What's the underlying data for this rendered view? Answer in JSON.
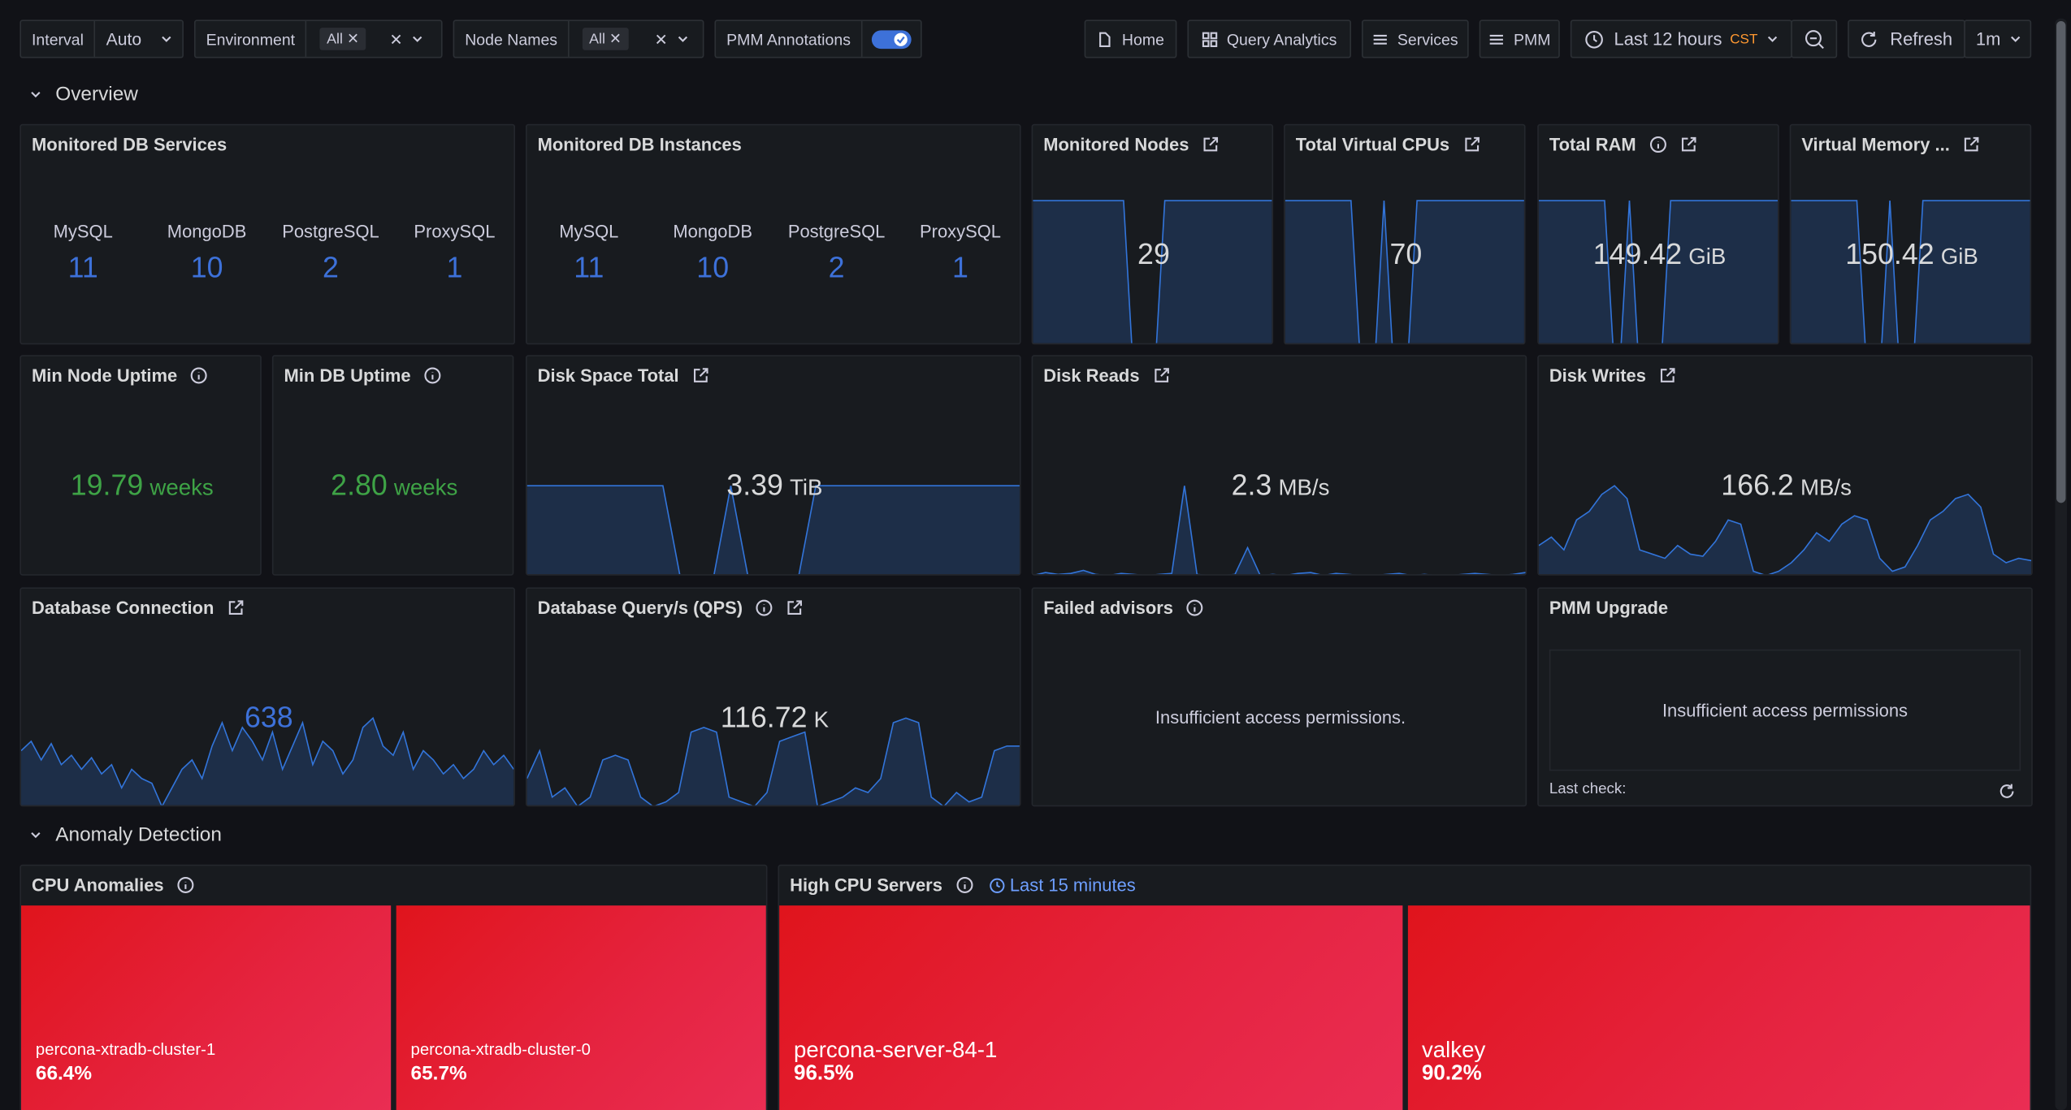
{
  "toolbar": {
    "variables": [
      {
        "label": "Interval",
        "value": "Auto"
      },
      {
        "label": "Environment",
        "value": "All"
      },
      {
        "label": "Node Names",
        "value": "All"
      }
    ],
    "annotations_toggle": {
      "label": "PMM Annotations"
    },
    "links": [
      "Home",
      "Query Analytics",
      "Services",
      "PMM"
    ],
    "time_range": "Last 12 hours",
    "timezone": "CST",
    "refresh": "Refresh",
    "refresh_interval": "1m"
  },
  "rows": [
    {
      "title": "Overview",
      "panels": [
        {
          "kind": "counts",
          "title": "Monitored DB Services",
          "color": "#3d71d9",
          "items": [
            {
              "name": "MySQL",
              "value": 11
            },
            {
              "name": "MongoDB",
              "value": 10
            },
            {
              "name": "PostgreSQL",
              "value": 2
            },
            {
              "name": "ProxySQL",
              "value": 1
            }
          ]
        },
        {
          "kind": "counts",
          "title": "Monitored DB Instances",
          "color": "#3d71d9",
          "items": [
            {
              "name": "MySQL",
              "value": 11
            },
            {
              "name": "MongoDB",
              "value": 10
            },
            {
              "name": "PostgreSQL",
              "value": 2
            },
            {
              "name": "ProxySQL",
              "value": 1
            }
          ]
        },
        {
          "kind": "stat",
          "title": "Monitored Nodes",
          "icons": [
            "link"
          ],
          "value": 29,
          "color": "#d8d9da",
          "sparkline": [
            29,
            29,
            29,
            29,
            29,
            29,
            29,
            29,
            29,
            29,
            29,
            29,
            0,
            0,
            0,
            0,
            29,
            29,
            29,
            29,
            29,
            29,
            29,
            29,
            29,
            29,
            29,
            29,
            29,
            29
          ]
        },
        {
          "kind": "stat",
          "title": "Total Virtual CPUs",
          "icons": [
            "link"
          ],
          "value": 70,
          "color": "#d8d9da",
          "sparkline": [
            70,
            70,
            70,
            70,
            70,
            70,
            70,
            70,
            70,
            0,
            0,
            0,
            70,
            0,
            0,
            0,
            70,
            70,
            70,
            70,
            70,
            70,
            70,
            70,
            70,
            70,
            70,
            70,
            70,
            70
          ]
        },
        {
          "kind": "stat",
          "title": "Total RAM",
          "icons": [
            "info",
            "link"
          ],
          "value": 149.42,
          "unit": "GiB",
          "color": "#d8d9da",
          "sparkline": [
            149.42,
            149.42,
            149.42,
            149.42,
            149.42,
            149.42,
            149.42,
            149.42,
            149.42,
            0,
            0,
            149.42,
            0,
            0,
            0,
            0,
            149.42,
            149.42,
            149.42,
            149.42,
            149.42,
            149.42,
            149.42,
            149.42,
            149.42,
            149.42,
            149.42,
            149.42,
            149.42,
            149.42
          ]
        },
        {
          "kind": "stat",
          "title": "Virtual Memory ...",
          "icons": [
            "link"
          ],
          "value": 150.42,
          "unit": "GiB",
          "color": "#d8d9da",
          "sparkline": [
            150.42,
            150.42,
            150.42,
            150.42,
            150.42,
            150.42,
            150.42,
            150.42,
            150.42,
            0,
            0,
            0,
            150.42,
            0,
            0,
            0,
            150.42,
            150.42,
            150.42,
            150.42,
            150.42,
            150.42,
            150.42,
            150.42,
            150.42,
            150.42,
            150.42,
            150.42,
            150.42,
            150.42
          ]
        },
        {
          "kind": "stat",
          "title": "Min Node Uptime",
          "icons": [
            "info"
          ],
          "value": 19.79,
          "unit": "weeks",
          "color": "#3ea346"
        },
        {
          "kind": "stat",
          "title": "Min DB Uptime",
          "icons": [
            "info"
          ],
          "value": 2.8,
          "value_label": "2.80",
          "unit": "weeks",
          "color": "#3ea346"
        },
        {
          "kind": "stat",
          "title": "Disk Space Total",
          "icons": [
            "link"
          ],
          "value": 3.39,
          "unit": "TiB",
          "color": "#d8d9da",
          "sparkline": [
            3.39,
            3.39,
            3.39,
            3.39,
            3.39,
            3.39,
            3.39,
            3.39,
            3.39,
            0,
            0,
            0,
            3.39,
            0,
            0,
            0,
            0,
            3.39,
            3.39,
            3.39,
            3.39,
            3.39,
            3.39,
            3.39,
            3.39,
            3.39,
            3.39,
            3.39,
            3.39,
            3.39
          ]
        },
        {
          "kind": "stat",
          "title": "Disk Reads",
          "icons": [
            "link"
          ],
          "value": 2.3,
          "unit": "MB/s",
          "color": "#d8d9da",
          "sparkline": [
            0.3,
            0.6,
            0.4,
            0.5,
            0.8,
            0.4,
            0.3,
            0.5,
            0.4,
            0.3,
            0.4,
            0.5,
            9.0,
            0.4,
            0.3,
            0.3,
            0.4,
            3.0,
            0.3,
            0.4,
            0.3,
            0.5,
            0.6,
            0.3,
            0.5,
            0.4,
            0.3,
            0.3,
            0.4,
            0.5,
            0.3,
            0.4,
            0.3,
            0.3,
            0.4,
            0.5,
            0.4,
            0.3,
            0.4,
            0.6
          ]
        },
        {
          "kind": "stat",
          "title": "Disk Writes",
          "icons": [
            "link"
          ],
          "value": 166.2,
          "unit": "MB/s",
          "color": "#d8d9da",
          "sparkline": [
            120,
            140,
            110,
            180,
            200,
            240,
            260,
            230,
            110,
            100,
            90,
            120,
            100,
            95,
            130,
            180,
            170,
            60,
            50,
            60,
            80,
            110,
            150,
            130,
            170,
            190,
            180,
            90,
            60,
            70,
            120,
            180,
            200,
            230,
            240,
            210,
            100,
            80,
            90,
            85
          ]
        },
        {
          "kind": "stat",
          "title": "Database Connection",
          "icons": [
            "link"
          ],
          "value": 638,
          "color": "#3d71d9",
          "sparkline": [
            640,
            660,
            620,
            655,
            610,
            630,
            600,
            625,
            590,
            610,
            560,
            600,
            580,
            570,
            520,
            560,
            600,
            620,
            580,
            650,
            700,
            640,
            690,
            660,
            620,
            680,
            600,
            650,
            700,
            610,
            660,
            640,
            590,
            620,
            690,
            710,
            650,
            630,
            680,
            600,
            640,
            620,
            590,
            610,
            580,
            600,
            640,
            610,
            630,
            600
          ]
        },
        {
          "kind": "stat",
          "title": "Database Query/s (QPS)",
          "icons": [
            "info",
            "link"
          ],
          "value": 116.72,
          "unit": "K",
          "color": "#d8d9da",
          "sparkline": [
            60,
            90,
            40,
            50,
            30,
            40,
            80,
            85,
            80,
            40,
            30,
            35,
            45,
            110,
            115,
            110,
            40,
            35,
            30,
            45,
            100,
            105,
            110,
            30,
            35,
            40,
            50,
            45,
            60,
            120,
            125,
            120,
            40,
            30,
            45,
            35,
            40,
            90,
            95,
            95
          ]
        },
        {
          "kind": "message",
          "title": "Failed advisors",
          "icons": [
            "info"
          ],
          "message": "Insufficient access permissions."
        },
        {
          "kind": "upgrade",
          "title": "PMM Upgrade",
          "message": "Insufficient access permissions",
          "last_check": "Last check:"
        }
      ]
    },
    {
      "title": "Anomaly Detection",
      "panels": [
        {
          "kind": "treemap",
          "title": "CPU Anomalies",
          "icons": [
            "info"
          ],
          "cells": [
            {
              "name": "percona-xtradb-cluster-1",
              "value": 66.4,
              "value_label": "66.4%"
            },
            {
              "name": "percona-xtradb-cluster-0",
              "value": 65.7,
              "value_label": "65.7%"
            }
          ]
        },
        {
          "kind": "treemap",
          "title": "High CPU Servers",
          "icons": [
            "info"
          ],
          "subtitle": "Last 15 minutes",
          "cells": [
            {
              "name": "percona-server-84-1",
              "value": 96.5,
              "value_label": "96.5%"
            },
            {
              "name": "valkey",
              "value": 90.2,
              "value_label": "90.2%"
            }
          ]
        }
      ]
    }
  ]
}
